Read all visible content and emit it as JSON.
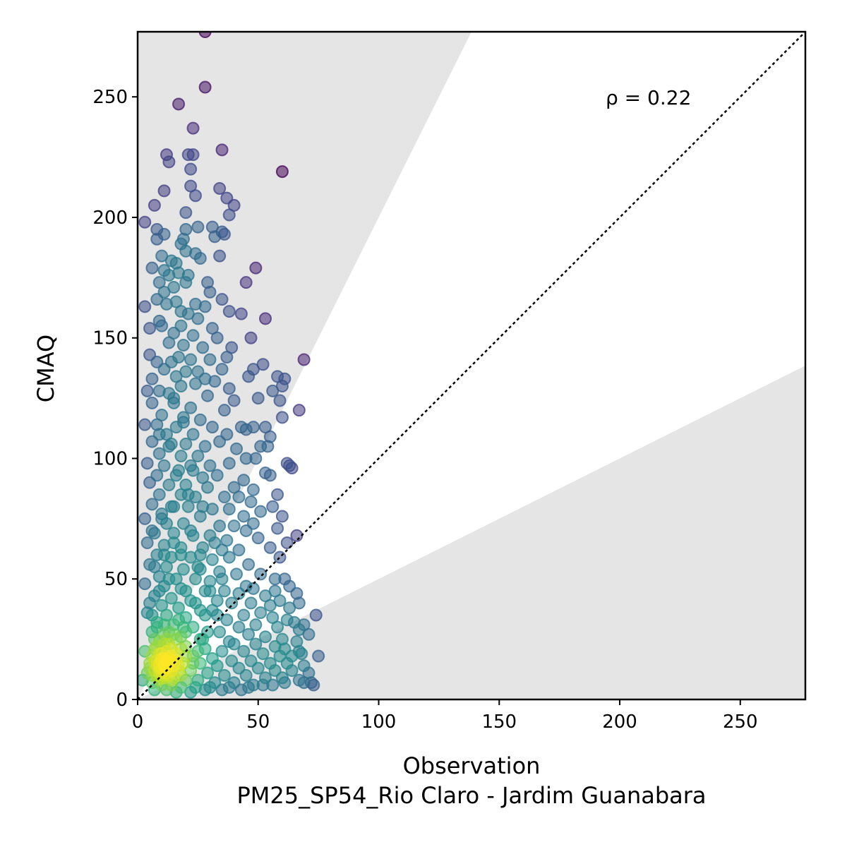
{
  "chart_data": {
    "type": "scatter",
    "title": "",
    "xlabel": "Observation",
    "ylabel": "CMAQ",
    "station_label": "PM25_SP54_Rio Claro - Jardim Guanabara",
    "annotation": "ρ = 0.22",
    "xlim": [
      0,
      277
    ],
    "ylim": [
      0,
      277
    ],
    "xticks": [
      0,
      50,
      100,
      150,
      200,
      250
    ],
    "yticks": [
      0,
      50,
      100,
      150,
      200,
      250
    ],
    "xtick_labels": [
      "0",
      "50",
      "100",
      "150",
      "200",
      "250"
    ],
    "ytick_labels": [
      "0",
      "50",
      "100",
      "150",
      "200",
      "250"
    ],
    "reference_line": {
      "style": "dotted",
      "slope": 1,
      "color": "#000000"
    },
    "shaded_regions": [
      {
        "description": "model > 2x observation",
        "slope_min": 2,
        "color": "#e5e5e5"
      },
      {
        "description": "model < 0.5x observation",
        "slope_max": 0.5,
        "color": "#e5e5e5"
      }
    ],
    "colormap": "viridis",
    "marker_alpha": 0.55,
    "grid": false,
    "points": [
      [
        28,
        277
      ],
      [
        28,
        254
      ],
      [
        17,
        247
      ],
      [
        23,
        237
      ],
      [
        12,
        226
      ],
      [
        21,
        226
      ],
      [
        23,
        226
      ],
      [
        35,
        228
      ],
      [
        13,
        223
      ],
      [
        22,
        220
      ],
      [
        60,
        219
      ],
      [
        11,
        211
      ],
      [
        22,
        213
      ],
      [
        24,
        209
      ],
      [
        34,
        212
      ],
      [
        37,
        208
      ],
      [
        7,
        205
      ],
      [
        40,
        205
      ],
      [
        20,
        202
      ],
      [
        38,
        201
      ],
      [
        3,
        198
      ],
      [
        8,
        195
      ],
      [
        11,
        193
      ],
      [
        20,
        195
      ],
      [
        25,
        196
      ],
      [
        31,
        196
      ],
      [
        35,
        194
      ],
      [
        8,
        191
      ],
      [
        19,
        191
      ],
      [
        32,
        192
      ],
      [
        36,
        193
      ],
      [
        18,
        189
      ],
      [
        20,
        186
      ],
      [
        24,
        185
      ],
      [
        26,
        183
      ],
      [
        34,
        184
      ],
      [
        10,
        184
      ],
      [
        14,
        182
      ],
      [
        16,
        181
      ],
      [
        6,
        179
      ],
      [
        11,
        178
      ],
      [
        13,
        176
      ],
      [
        17,
        177
      ],
      [
        21,
        176
      ],
      [
        49,
        179
      ],
      [
        9,
        173
      ],
      [
        15,
        171
      ],
      [
        20,
        173
      ],
      [
        29,
        173
      ],
      [
        11,
        169
      ],
      [
        30,
        169
      ],
      [
        45,
        173
      ],
      [
        8,
        166
      ],
      [
        12,
        164
      ],
      [
        16,
        165
      ],
      [
        24,
        164
      ],
      [
        28,
        163
      ],
      [
        35,
        166
      ],
      [
        3,
        163
      ],
      [
        18,
        161
      ],
      [
        21,
        160
      ],
      [
        25,
        158
      ],
      [
        38,
        161
      ],
      [
        43,
        160
      ],
      [
        53,
        158
      ],
      [
        9,
        157
      ],
      [
        10,
        155
      ],
      [
        5,
        154
      ],
      [
        18,
        155
      ],
      [
        31,
        154
      ],
      [
        15,
        152
      ],
      [
        23,
        151
      ],
      [
        33,
        150
      ],
      [
        47,
        150
      ],
      [
        13,
        148
      ],
      [
        19,
        147
      ],
      [
        27,
        146
      ],
      [
        39,
        146
      ],
      [
        5,
        143
      ],
      [
        8,
        140
      ],
      [
        17,
        142
      ],
      [
        22,
        141
      ],
      [
        30,
        141
      ],
      [
        37,
        142
      ],
      [
        14,
        140
      ],
      [
        52,
        139
      ],
      [
        69,
        141
      ],
      [
        11,
        137
      ],
      [
        20,
        136
      ],
      [
        25,
        136
      ],
      [
        35,
        137
      ],
      [
        48,
        137
      ],
      [
        6,
        133
      ],
      [
        16,
        134
      ],
      [
        28,
        133
      ],
      [
        32,
        132
      ],
      [
        46,
        134
      ],
      [
        58,
        134
      ],
      [
        61,
        133
      ],
      [
        60,
        130
      ],
      [
        56,
        128
      ],
      [
        18,
        130
      ],
      [
        24,
        131
      ],
      [
        38,
        129
      ],
      [
        4,
        128
      ],
      [
        9,
        128
      ],
      [
        13,
        127
      ],
      [
        29,
        126
      ],
      [
        50,
        125
      ],
      [
        40,
        124
      ],
      [
        59,
        124
      ],
      [
        67,
        120
      ],
      [
        6,
        123
      ],
      [
        15,
        123
      ],
      [
        22,
        121
      ],
      [
        36,
        120
      ],
      [
        10,
        118
      ],
      [
        19,
        117
      ],
      [
        26,
        116
      ],
      [
        60,
        117
      ],
      [
        8,
        114
      ],
      [
        16,
        113
      ],
      [
        31,
        113
      ],
      [
        43,
        113
      ],
      [
        45,
        112
      ],
      [
        48,
        113
      ],
      [
        53,
        113
      ],
      [
        3,
        114
      ],
      [
        12,
        110
      ],
      [
        23,
        110
      ],
      [
        37,
        110
      ],
      [
        55,
        109
      ],
      [
        6,
        107
      ],
      [
        14,
        106
      ],
      [
        20,
        106
      ],
      [
        28,
        105
      ],
      [
        34,
        107
      ],
      [
        51,
        105
      ],
      [
        54,
        105
      ],
      [
        41,
        104
      ],
      [
        9,
        102
      ],
      [
        18,
        101
      ],
      [
        25,
        101
      ],
      [
        45,
        100
      ],
      [
        49,
        100
      ],
      [
        4,
        98
      ],
      [
        11,
        97
      ],
      [
        22,
        97
      ],
      [
        30,
        97
      ],
      [
        38,
        98
      ],
      [
        62,
        98
      ],
      [
        63,
        97
      ],
      [
        64,
        96
      ],
      [
        8,
        93
      ],
      [
        16,
        93
      ],
      [
        27,
        92
      ],
      [
        33,
        93
      ],
      [
        44,
        91
      ],
      [
        53,
        94
      ],
      [
        55,
        93
      ],
      [
        5,
        90
      ],
      [
        13,
        89
      ],
      [
        20,
        89
      ],
      [
        29,
        88
      ],
      [
        40,
        88
      ],
      [
        48,
        87
      ],
      [
        9,
        85
      ],
      [
        18,
        85
      ],
      [
        24,
        84
      ],
      [
        36,
        84
      ],
      [
        42,
        84
      ],
      [
        47,
        82
      ],
      [
        58,
        85
      ],
      [
        6,
        81
      ],
      [
        15,
        80
      ],
      [
        21,
        80
      ],
      [
        31,
        79
      ],
      [
        38,
        79
      ],
      [
        51,
        78
      ],
      [
        10,
        77
      ],
      [
        26,
        76
      ],
      [
        44,
        76
      ],
      [
        56,
        80
      ],
      [
        60,
        76
      ],
      [
        3,
        75
      ],
      [
        12,
        73
      ],
      [
        19,
        73
      ],
      [
        34,
        72
      ],
      [
        40,
        72
      ],
      [
        45,
        70
      ],
      [
        48,
        73
      ],
      [
        58,
        71
      ],
      [
        7,
        69
      ],
      [
        15,
        69
      ],
      [
        23,
        68
      ],
      [
        30,
        68
      ],
      [
        37,
        66
      ],
      [
        50,
        67
      ],
      [
        66,
        68
      ],
      [
        4,
        65
      ],
      [
        11,
        64
      ],
      [
        18,
        63
      ],
      [
        27,
        63
      ],
      [
        35,
        62
      ],
      [
        42,
        62
      ],
      [
        55,
        63
      ],
      [
        62,
        65
      ],
      [
        8,
        60
      ],
      [
        14,
        59
      ],
      [
        22,
        59
      ],
      [
        31,
        58
      ],
      [
        38,
        59
      ],
      [
        46,
        56
      ],
      [
        59,
        59
      ],
      [
        5,
        56
      ],
      [
        12,
        55
      ],
      [
        19,
        54
      ],
      [
        26,
        54
      ],
      [
        34,
        53
      ],
      [
        41,
        52
      ],
      [
        51,
        52
      ],
      [
        57,
        50
      ],
      [
        61,
        50
      ],
      [
        63,
        47
      ],
      [
        66,
        44
      ],
      [
        9,
        51
      ],
      [
        16,
        50
      ],
      [
        24,
        50
      ],
      [
        30,
        49
      ],
      [
        45,
        47
      ],
      [
        48,
        46
      ],
      [
        57,
        45
      ],
      [
        3,
        48
      ],
      [
        11,
        47
      ],
      [
        18,
        46
      ],
      [
        28,
        45
      ],
      [
        36,
        45
      ],
      [
        42,
        44
      ],
      [
        53,
        43
      ],
      [
        59,
        41
      ],
      [
        67,
        40
      ],
      [
        7,
        43
      ],
      [
        14,
        42
      ],
      [
        22,
        41
      ],
      [
        33,
        41
      ],
      [
        39,
        40
      ],
      [
        47,
        40
      ],
      [
        55,
        39
      ],
      [
        63,
        38
      ],
      [
        10,
        39
      ],
      [
        17,
        38
      ],
      [
        26,
        37
      ],
      [
        31,
        37
      ],
      [
        44,
        35
      ],
      [
        51,
        36
      ],
      [
        56,
        34
      ],
      [
        62,
        33
      ],
      [
        65,
        32
      ],
      [
        69,
        31
      ],
      [
        74,
        35
      ],
      [
        4,
        36
      ],
      [
        12,
        35
      ],
      [
        20,
        34
      ],
      [
        37,
        33
      ],
      [
        42,
        30
      ],
      [
        49,
        31
      ],
      [
        58,
        30
      ],
      [
        67,
        29
      ],
      [
        71,
        27
      ],
      [
        8,
        32
      ],
      [
        15,
        31
      ],
      [
        23,
        30
      ],
      [
        29,
        28
      ],
      [
        34,
        28
      ],
      [
        46,
        27
      ],
      [
        53,
        26
      ],
      [
        60,
        25
      ],
      [
        66,
        24
      ],
      [
        6,
        28
      ],
      [
        11,
        27
      ],
      [
        18,
        26
      ],
      [
        26,
        25
      ],
      [
        38,
        24
      ],
      [
        40,
        23
      ],
      [
        49,
        23
      ],
      [
        57,
        22
      ],
      [
        61,
        21
      ],
      [
        67,
        20
      ],
      [
        9,
        24
      ],
      [
        13,
        23
      ],
      [
        20,
        22
      ],
      [
        28,
        21
      ],
      [
        35,
        20
      ],
      [
        44,
        20
      ],
      [
        52,
        19
      ],
      [
        59,
        18
      ],
      [
        64,
        18
      ],
      [
        68,
        19
      ],
      [
        75,
        18
      ],
      [
        3,
        20
      ],
      [
        7,
        21
      ],
      [
        16,
        19
      ],
      [
        23,
        18
      ],
      [
        31,
        17
      ],
      [
        39,
        16
      ],
      [
        47,
        16
      ],
      [
        55,
        15
      ],
      [
        62,
        15
      ],
      [
        69,
        14
      ],
      [
        10,
        17
      ],
      [
        14,
        16
      ],
      [
        19,
        15
      ],
      [
        26,
        15
      ],
      [
        33,
        14
      ],
      [
        42,
        13
      ],
      [
        50,
        13
      ],
      [
        57,
        12
      ],
      [
        64,
        12
      ],
      [
        71,
        11
      ],
      [
        5,
        15
      ],
      [
        9,
        14
      ],
      [
        12,
        13
      ],
      [
        17,
        12
      ],
      [
        22,
        12
      ],
      [
        29,
        11
      ],
      [
        36,
        10
      ],
      [
        45,
        10
      ],
      [
        53,
        9
      ],
      [
        60,
        9
      ],
      [
        67,
        8
      ],
      [
        72,
        7
      ],
      [
        4,
        11
      ],
      [
        8,
        10
      ],
      [
        11,
        9
      ],
      [
        15,
        9
      ],
      [
        20,
        8
      ],
      [
        25,
        8
      ],
      [
        32,
        7
      ],
      [
        40,
        7
      ],
      [
        48,
        6
      ],
      [
        56,
        6
      ],
      [
        61,
        7
      ],
      [
        69,
        7
      ],
      [
        73,
        6
      ],
      [
        6,
        7
      ],
      [
        10,
        6
      ],
      [
        14,
        6
      ],
      [
        18,
        5
      ],
      [
        24,
        5
      ],
      [
        30,
        5
      ],
      [
        38,
        5
      ],
      [
        46,
        5
      ],
      [
        52,
        6
      ],
      [
        2,
        8
      ],
      [
        7,
        4
      ],
      [
        12,
        4
      ],
      [
        16,
        3
      ],
      [
        22,
        3
      ],
      [
        28,
        4
      ],
      [
        35,
        4
      ],
      [
        43,
        4
      ],
      [
        6,
        18
      ],
      [
        8,
        16
      ],
      [
        9,
        13
      ],
      [
        10,
        16
      ],
      [
        11,
        14
      ],
      [
        12,
        16
      ],
      [
        7,
        12
      ],
      [
        9,
        11
      ],
      [
        10,
        19
      ],
      [
        11,
        12
      ],
      [
        13,
        15
      ],
      [
        8,
        22
      ],
      [
        12,
        20
      ],
      [
        14,
        12
      ],
      [
        10,
        9
      ],
      [
        6,
        10
      ],
      [
        9,
        8
      ],
      [
        13,
        10
      ],
      [
        15,
        14
      ],
      [
        11,
        23
      ],
      [
        7,
        25
      ],
      [
        14,
        18
      ],
      [
        16,
        16
      ],
      [
        12,
        11
      ],
      [
        5,
        13
      ],
      [
        10,
        13
      ],
      [
        11,
        17
      ],
      [
        9,
        15
      ],
      [
        12,
        14
      ],
      [
        8,
        14
      ],
      [
        10,
        11
      ],
      [
        13,
        17
      ],
      [
        11,
        10
      ],
      [
        7,
        16
      ],
      [
        14,
        21
      ],
      [
        9,
        19
      ],
      [
        16,
        25
      ],
      [
        13,
        28
      ],
      [
        8,
        30
      ],
      [
        17,
        33
      ],
      [
        11,
        31
      ],
      [
        6,
        35
      ],
      [
        19,
        30
      ],
      [
        15,
        27
      ],
      [
        12,
        25
      ],
      [
        18,
        21
      ],
      [
        20,
        18
      ],
      [
        17,
        14
      ],
      [
        5,
        40
      ],
      [
        9,
        45
      ],
      [
        13,
        50
      ],
      [
        7,
        55
      ],
      [
        11,
        60
      ],
      [
        15,
        65
      ],
      [
        6,
        70
      ],
      [
        10,
        75
      ],
      [
        14,
        80
      ],
      [
        18,
        60
      ],
      [
        22,
        70
      ],
      [
        25,
        55
      ],
      [
        20,
        45
      ],
      [
        24,
        40
      ],
      [
        28,
        35
      ],
      [
        30,
        45
      ],
      [
        26,
        60
      ],
      [
        21,
        85
      ],
      [
        17,
        95
      ],
      [
        13,
        105
      ],
      [
        9,
        110
      ],
      [
        19,
        115
      ],
      [
        15,
        125
      ],
      [
        23,
        95
      ],
      [
        27,
        80
      ],
      [
        32,
        65
      ],
      [
        35,
        50
      ],
      [
        33,
        35
      ],
      [
        27,
        25
      ],
      [
        23,
        15
      ],
      [
        18,
        10
      ],
      [
        14,
        8
      ],
      [
        20,
        28
      ],
      [
        25,
        20
      ]
    ]
  }
}
